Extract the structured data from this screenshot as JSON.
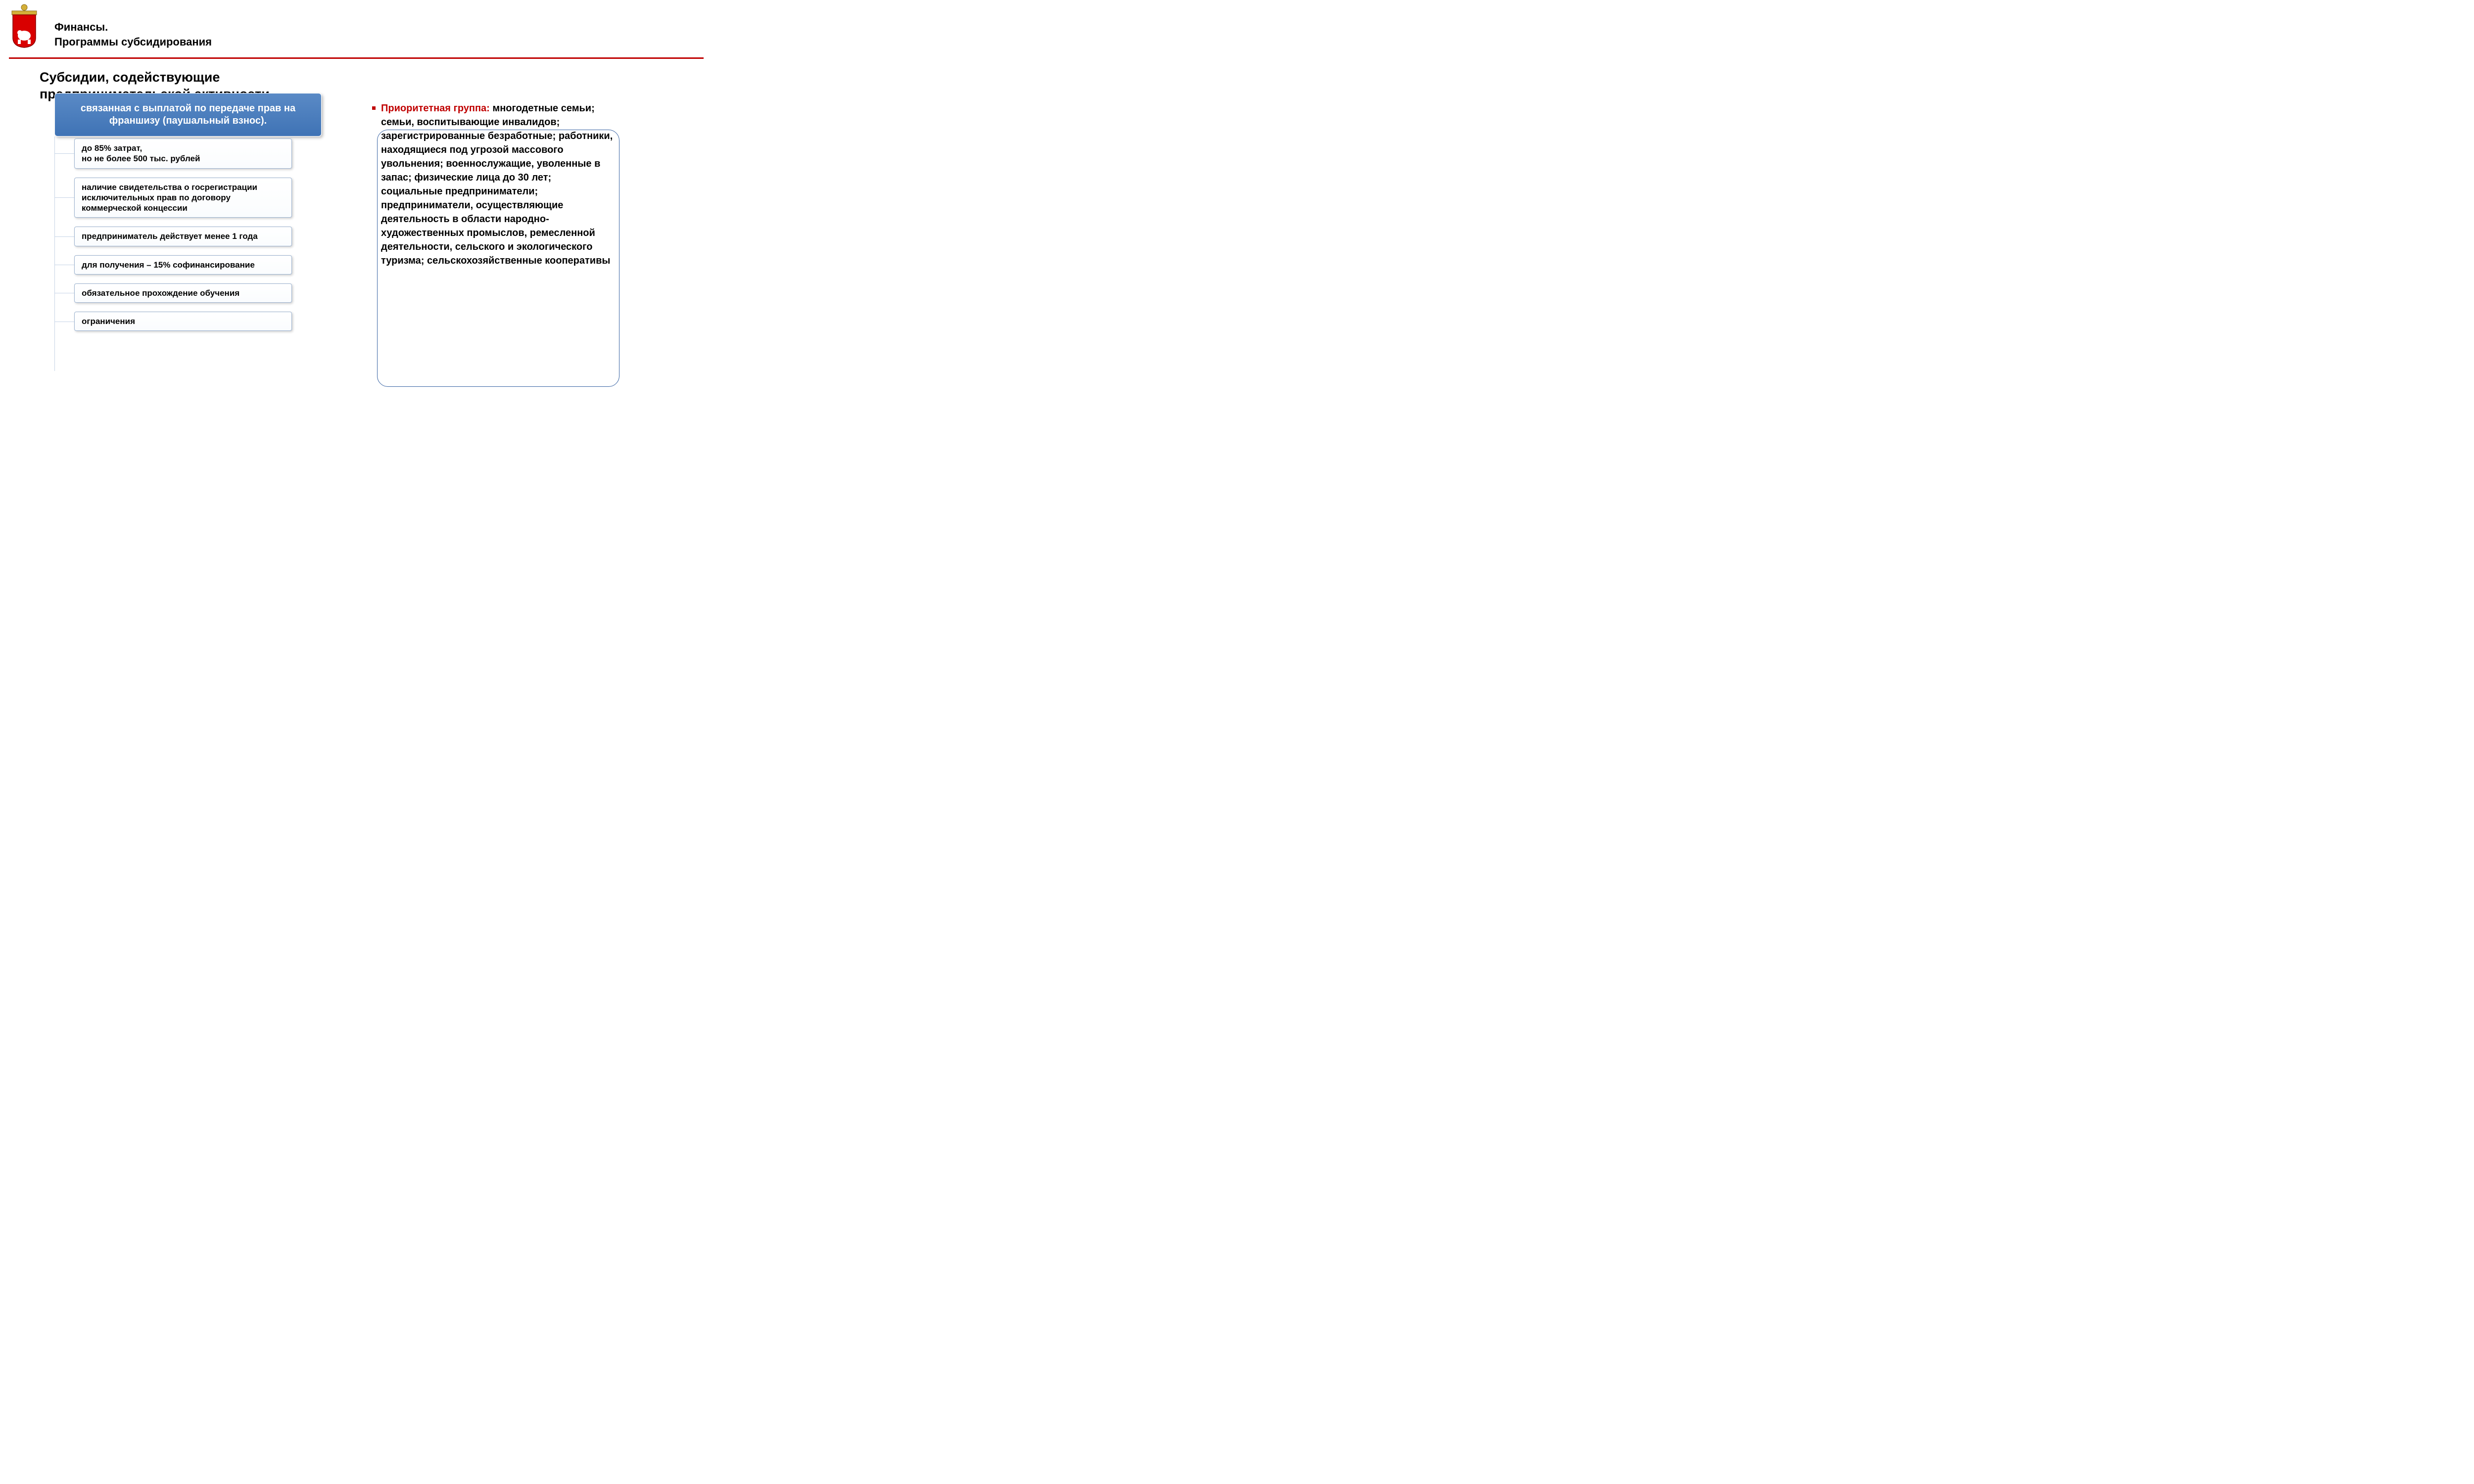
{
  "colors": {
    "accent_red": "#c00000",
    "blue_header_top": "#5a8ac6",
    "blue_header_bottom": "#3f73b5",
    "box_border": "#9cb3d0",
    "frame_border": "#3a65a4",
    "connector": "#c6d4e6",
    "text": "#000000",
    "white": "#ffffff"
  },
  "header": {
    "line1": "Финансы.",
    "line2": "Программы субсидирования"
  },
  "main_title": "Субсидии, содействующие предпринимательской активности",
  "blue_header": "связанная с выплатой по передаче прав на франшизу (паушальный взнос).",
  "tree": {
    "items": [
      "до 85% затрат,\nно не более 500 тыс. рублей",
      "наличие свидетельства о госрегистрации исключительных прав по договору коммерческой концессии",
      "предприниматель действует менее 1 года",
      "для получения  – 15% софинансирование",
      "обязательное прохождение обучения",
      "ограничения"
    ]
  },
  "right": {
    "priority_label": "Приоритетная группа:",
    "priority_text": "многодетные семьи; семьи, воспитывающие инвалидов; зарегистрированные безработные; работники, находящиеся под угрозой массового увольнения; военнослужащие, уволенные в запас; физические лица до 30 лет; социальные предприниматели; предприниматели, осуществляющие деятельность в области народно-художественных промыслов, ремесленной деятельности, сельского и экологического туризма; сельскохозяйственные кооперативы"
  },
  "typography": {
    "header_fontsize": 22,
    "main_title_fontsize": 27,
    "blue_header_fontsize": 20,
    "box_fontsize": 17,
    "right_fontsize": 20,
    "font_family": "Verdana"
  },
  "layout": {
    "slide_width": 1440,
    "slide_height": 810
  }
}
